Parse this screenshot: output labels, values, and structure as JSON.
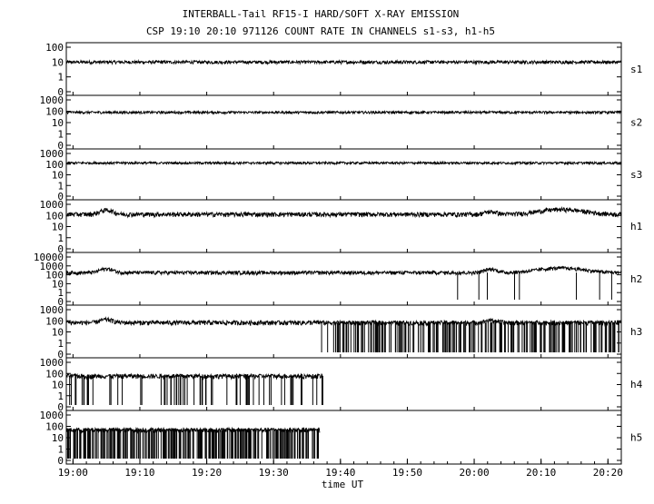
{
  "title_line1": "INTERBALL-Tail RF15-I HARD/SOFT X-RAY EMISSION",
  "title_line2": "CSP 19:10 20:10 971126  COUNT RATE IN CHANNELS s1-s3, h1-h5",
  "chart_data": {
    "type": "line",
    "title": "INTERBALL-Tail RF15-I HARD/SOFT X-RAY EMISSION",
    "subtitle": "CSP 19:10 20:10 971126  COUNT RATE IN CHANNELS s1-s3, h1-h5",
    "xlabel": "time UT",
    "x_ticks": [
      "19:00",
      "19:10",
      "19:20",
      "19:30",
      "19:40",
      "19:50",
      "20:00",
      "20:10",
      "20:20"
    ],
    "xlim_minutes": [
      1139,
      1222
    ],
    "y_scale": "log",
    "grid": false,
    "panels": [
      {
        "name": "s1",
        "yticks": [
          "100",
          "10",
          "1",
          "0"
        ],
        "ylim": [
          0,
          100
        ],
        "baseline": 10,
        "features": []
      },
      {
        "name": "s2",
        "yticks": [
          "1000",
          "100",
          "10",
          "1",
          "0"
        ],
        "ylim": [
          0,
          1000
        ],
        "baseline": 80,
        "features": []
      },
      {
        "name": "s3",
        "yticks": [
          "1000",
          "100",
          "10",
          "1",
          "0"
        ],
        "ylim": [
          0,
          1000
        ],
        "baseline": 130,
        "features": []
      },
      {
        "name": "h1",
        "yticks": [
          "1000",
          "100",
          "10",
          "1",
          "0"
        ],
        "ylim": [
          0,
          1000
        ],
        "baseline": 130,
        "features": [
          {
            "t": 1145,
            "amp": 180
          },
          {
            "t": 1202.5,
            "amp": 90
          },
          {
            "t": 1213,
            "amp": 220
          }
        ]
      },
      {
        "name": "h2",
        "yticks": [
          "10000",
          "1000",
          "100",
          "10",
          "1",
          "0"
        ],
        "ylim": [
          0,
          10000
        ],
        "baseline": 180,
        "features": [
          {
            "t": 1145,
            "amp": 300
          },
          {
            "t": 1202.5,
            "amp": 250
          },
          {
            "t": 1213,
            "amp": 400
          }
        ],
        "dropouts_after": 1195,
        "dropout_density": 0.02
      },
      {
        "name": "h3",
        "yticks": [
          "1000",
          "100",
          "10",
          "1",
          "0"
        ],
        "ylim": [
          0,
          1000
        ],
        "baseline": 70,
        "features": [
          {
            "t": 1145,
            "amp": 60
          },
          {
            "t": 1202.5,
            "amp": 40
          }
        ],
        "dropouts_after": 1177,
        "dropout_density": 0.25
      },
      {
        "name": "h4",
        "yticks": [
          "1000",
          "100",
          "10",
          "1",
          "0"
        ],
        "ylim": [
          0,
          1000
        ],
        "baseline": 60,
        "data_end": 1177.4,
        "dropout_density": 0.12
      },
      {
        "name": "h5",
        "yticks": [
          "1000",
          "100",
          "10",
          "1",
          "0"
        ],
        "ylim": [
          0,
          1000
        ],
        "baseline": 50,
        "data_end": 1176.9,
        "dropout_density": 0.35
      }
    ]
  }
}
